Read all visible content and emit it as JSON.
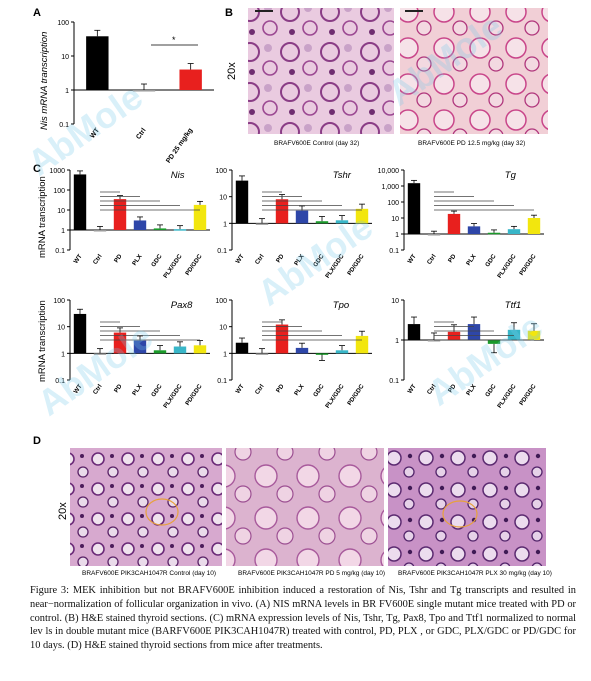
{
  "watermark": "AbMole",
  "panels": {
    "A": {
      "letter": "A",
      "ylabel": "Nis mRNA transcription",
      "yticks": [
        "100",
        "10",
        "1",
        "0.1"
      ],
      "xlabels": [
        "WT",
        "Ctrl",
        "PD 25 mg/kg"
      ],
      "sig": "*"
    },
    "B": {
      "letter": "B",
      "row_label": "20x",
      "images": [
        {
          "caption": "BRAFV600E Control (day 32)"
        },
        {
          "caption": "BRAFV600E PD 12.5 mg/kg (day 32)"
        }
      ]
    },
    "C": {
      "letter": "C",
      "ylabel": "mRNA transcription"
    },
    "D": {
      "letter": "D",
      "row_label": "20x",
      "images": [
        {
          "caption": "BRAFV600E PIK3CAH1047R Control (day 10)"
        },
        {
          "caption": "BRAFV600E PIK3CAH1047R PD 5 mg/kg (day 10)"
        },
        {
          "caption": "BRAFV600E PIK3CAH1047R PLX 30 mg/kg (day 10)"
        }
      ]
    }
  },
  "chart_data": [
    {
      "type": "bar",
      "panel": "A",
      "title": "",
      "scale": "log",
      "categories": [
        "WT",
        "Ctrl",
        "PD 25 mg/kg"
      ],
      "values": [
        38,
        1,
        4
      ],
      "ylim": [
        0.1,
        100
      ],
      "colors": [
        "#000000",
        "#9a9a9a",
        "#e8201e"
      ]
    },
    {
      "type": "bar",
      "panel": "C",
      "title": "Nis",
      "scale": "log",
      "categories": [
        "WT",
        "Ctrl",
        "PD",
        "PLX",
        "GDC",
        "PLX/GDC",
        "PD/GDC"
      ],
      "values": [
        600,
        1,
        35,
        3,
        1.2,
        1.1,
        18
      ],
      "ylim": [
        0.1,
        1000
      ],
      "yticks": [
        "1000",
        "100",
        "10",
        "1",
        "0.1"
      ]
    },
    {
      "type": "bar",
      "panel": "C",
      "title": "Tshr",
      "scale": "log",
      "categories": [
        "WT",
        "Ctrl",
        "PD",
        "PLX",
        "GDC",
        "PLX/GDC",
        "PD/GDC"
      ],
      "values": [
        40,
        1,
        8,
        3,
        1.2,
        1.3,
        3.5
      ],
      "ylim": [
        0.1,
        100
      ],
      "yticks": [
        "100",
        "10",
        "1",
        "0.1"
      ]
    },
    {
      "type": "bar",
      "panel": "C",
      "title": "Tg",
      "scale": "log",
      "categories": [
        "WT",
        "Ctrl",
        "PD",
        "PLX",
        "GDC",
        "PLX/GDC",
        "PD/GDC"
      ],
      "values": [
        1500,
        1,
        18,
        3,
        1.2,
        2,
        10
      ],
      "ylim": [
        0.1,
        10000
      ],
      "yticks": [
        "10,000",
        "1,000",
        "100",
        "10",
        "1",
        "0.1"
      ]
    },
    {
      "type": "bar",
      "panel": "C",
      "title": "Pax8",
      "scale": "log",
      "categories": [
        "WT",
        "Ctrl",
        "PD",
        "PLX",
        "GDC",
        "PLX/GDC",
        "PD/GDC"
      ],
      "values": [
        30,
        1,
        6,
        3,
        1.3,
        1.8,
        2
      ],
      "ylim": [
        0.1,
        100
      ],
      "yticks": [
        "100",
        "10",
        "1",
        "0.1"
      ]
    },
    {
      "type": "bar",
      "panel": "C",
      "title": "Tpo",
      "scale": "log",
      "categories": [
        "WT",
        "Ctrl",
        "PD",
        "PLX",
        "GDC",
        "PLX/GDC",
        "PD/GDC"
      ],
      "values": [
        2.5,
        1,
        12,
        1.6,
        0.9,
        1.3,
        4.5
      ],
      "ylim": [
        0.1,
        100
      ],
      "yticks": [
        "100",
        "10",
        "1",
        "0.1"
      ]
    },
    {
      "type": "bar",
      "panel": "C",
      "title": "Ttf1",
      "scale": "log",
      "categories": [
        "WT",
        "Ctrl",
        "PD",
        "PLX",
        "GDC",
        "PLX/GDC",
        "PD/GDC"
      ],
      "values": [
        2.5,
        1,
        1.6,
        2.5,
        0.8,
        1.8,
        1.7
      ],
      "ylim": [
        0.1,
        10
      ],
      "yticks": [
        "10",
        "1",
        "0.1"
      ]
    }
  ],
  "bar_colors": [
    "#000000",
    "#9a9a9a",
    "#e8201e",
    "#2e46a8",
    "#1a9a2a",
    "#38b6c8",
    "#f2e60e"
  ],
  "caption": "Figure 3: MEK inhibition but not BRAFV600E inhibition induced a restoration of Nis, Tshr and Tg transcripts and resulted in near−normalization of follicular organization in vivo.  (A) NIS mRNA levels in BR FV600E single mutant mice treated with PD or control. (B) H&E stained thyroid sections. (C) mRNA expression levels of Nis, Tshr, Tg, Pax8, Tpo and Ttf1 normalized to normal lev ls in double mutant mice (BARFV600E PIK3CAH1047R) treated with control, PD, PLX , or GDC, PLX/GDC or PD/GDC for 10 days. (D) H&E stained thyroid sections from mice after treatments."
}
